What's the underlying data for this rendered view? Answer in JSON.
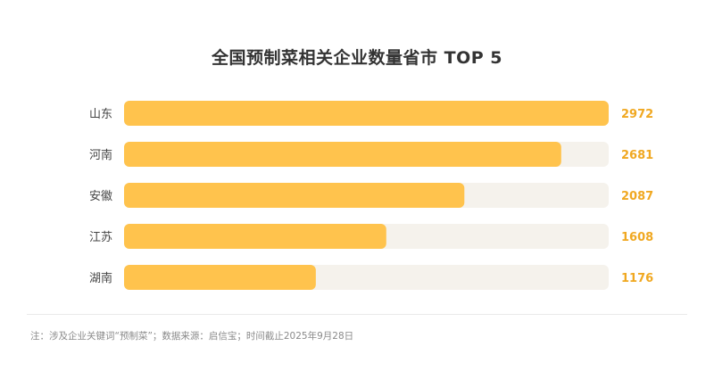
{
  "title": "全国预制菜相关企业数量省市 TOP 5",
  "footnote": "注：涉及企业关键词“预制菜”；数据来源：启信宝；时间截止2025年9月28日",
  "colors": {
    "bar": "#ffc34d",
    "track": "#f5f2ec",
    "value_label": "#f0a821",
    "category_label": "#444444"
  },
  "chart_data": {
    "type": "bar",
    "orientation": "horizontal",
    "title": "全国预制菜相关企业数量省市 TOP 5",
    "categories": [
      "山东",
      "河南",
      "安徽",
      "江苏",
      "湖南"
    ],
    "values": [
      2972,
      2681,
      2087,
      1608,
      1176
    ],
    "xlim": [
      0,
      2972
    ],
    "grid": false,
    "legend": "none"
  }
}
